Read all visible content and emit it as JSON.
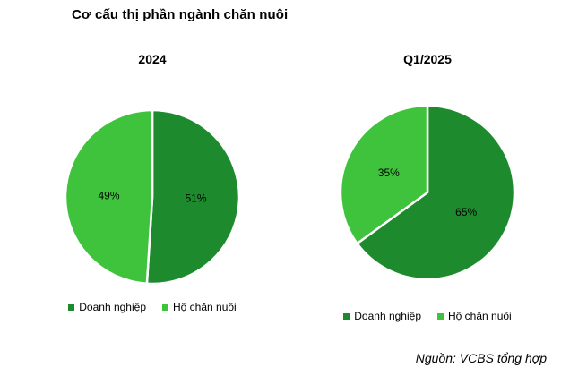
{
  "title": "Cơ cấu thị phần ngành chăn nuôi",
  "source_note": "Nguồn: VCBS tổng hợp",
  "colors": {
    "dark_green": "#1e8a2e",
    "light_green": "#3fc33c",
    "divider": "#ffffff",
    "text": "#000000",
    "background": "#ffffff"
  },
  "legend": {
    "series1": "Doanh nghiệp",
    "series2": "Hộ chăn nuôi"
  },
  "chart_data": [
    {
      "type": "pie",
      "title": "2024",
      "categories": [
        "Doanh nghiệp",
        "Hộ chăn nuôi"
      ],
      "values": [
        51,
        49
      ],
      "value_labels": [
        "51%",
        "49%"
      ],
      "colors": [
        "#1e8a2e",
        "#3fc33c"
      ],
      "start_angle_deg": 0,
      "direction": "clockwise",
      "legend_position": "bottom"
    },
    {
      "type": "pie",
      "title": "Q1/2025",
      "categories": [
        "Doanh nghiệp",
        "Hộ chăn nuôi"
      ],
      "values": [
        65,
        35
      ],
      "value_labels": [
        "65%",
        "35%"
      ],
      "colors": [
        "#1e8a2e",
        "#3fc33c"
      ],
      "start_angle_deg": 0,
      "direction": "clockwise",
      "legend_position": "bottom"
    }
  ]
}
